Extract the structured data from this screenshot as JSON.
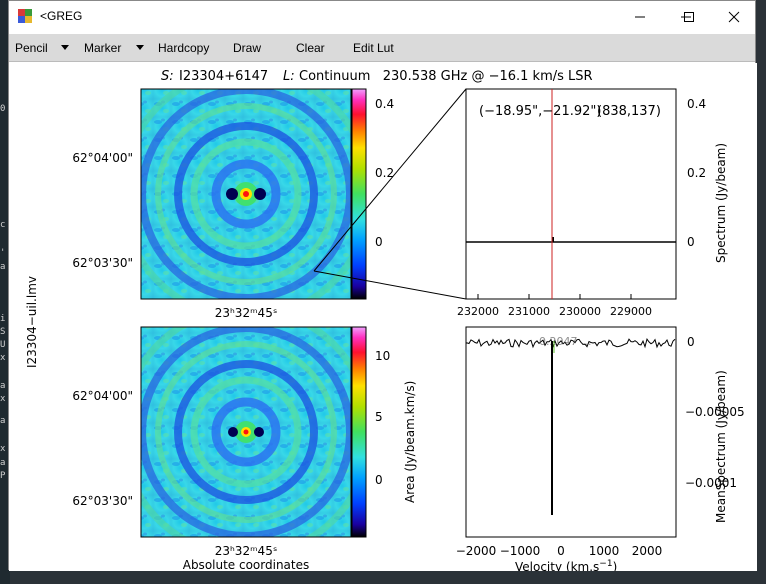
{
  "window": {
    "title": "<GREG"
  },
  "menu": {
    "pencil": "Pencil",
    "marker": "Marker",
    "hardcopy": "Hardcopy",
    "draw": "Draw",
    "clear": "Clear",
    "edit_lut": "Edit Lut"
  },
  "header": {
    "s_label": "S:",
    "source": "I23304+6147",
    "l_label": "L:",
    "line_info": "Continuum   230.538 GHz @ −16.1 km/s LSR"
  },
  "side_label": "I23304−uil.lmv",
  "map_top": {
    "y_ticks": [
      "62°04'00\"",
      "62°03'30\""
    ],
    "x_tick": "23ʰ32ᵐ45ˢ",
    "colorbar_ticks": [
      "0.4",
      "0.2",
      "0"
    ]
  },
  "map_bottom": {
    "y_ticks": [
      "62°04'00\"",
      "62°03'30\""
    ],
    "x_tick": "23ʰ32ᵐ45ˢ",
    "xlabel": "Absolute coordinates",
    "colorbar_ticks": [
      "10",
      "5",
      "0"
    ],
    "colorbar_label": "Area (Jy/beam.km/s)"
  },
  "spectrum": {
    "cursor_readout": "(−18.95\",−21.92\")",
    "pixel_readout": "(838,137)",
    "x_ticks": [
      "232000",
      "231000",
      "230000",
      "229000"
    ],
    "y_ticks": [
      "0.4",
      "0.2",
      "0"
    ],
    "ylabel": "Spectrum (Jy/beam)"
  },
  "mean_spectrum": {
    "overlay_text": "0.2047 ...",
    "x_ticks": [
      "−2000",
      "−1000",
      "0",
      "1000",
      "2000"
    ],
    "y_ticks": [
      "0",
      "−0.00005",
      "−0.0001"
    ],
    "xlabel": "Velocity (km.s",
    "xlabel_sup": "−1",
    "xlabel_end": ")",
    "ylabel": "MeanSpectrum (Jy/beam)"
  },
  "background_terminal": [
    "0",
    "c",
    "'",
    "a",
    "i",
    "S",
    "U",
    "x",
    "a",
    "x",
    "a",
    "x",
    "a",
    "P"
  ],
  "colors": {
    "cursor_line": "#cc2222",
    "window_bg": "#ffffff",
    "menubar_bg": "#dadada"
  }
}
